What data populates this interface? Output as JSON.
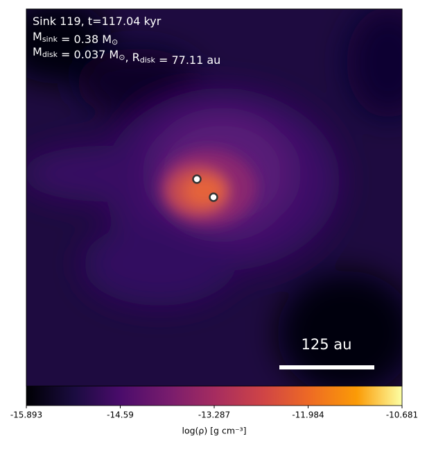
{
  "annotation": {
    "lines": [
      [
        "Sink 119, t=117.04 kyr"
      ],
      [
        "M",
        {
          "sub": "sink"
        },
        " = 0.38 M",
        {
          "sub": "⊙"
        }
      ],
      [
        "M",
        {
          "sub": "disk"
        },
        " = 0.037 M",
        {
          "sub": "⊙"
        },
        ", R",
        {
          "sub": "disk"
        },
        " = 77.11 au"
      ]
    ]
  },
  "scale_bar": "125 au",
  "colorbar": {
    "lim": [
      -15.893,
      -10.681
    ],
    "ticks": [
      -15.893,
      -14.59,
      -13.287,
      -11.984,
      -10.681
    ],
    "label": "log(ρ) [g cm⁻³]"
  }
}
